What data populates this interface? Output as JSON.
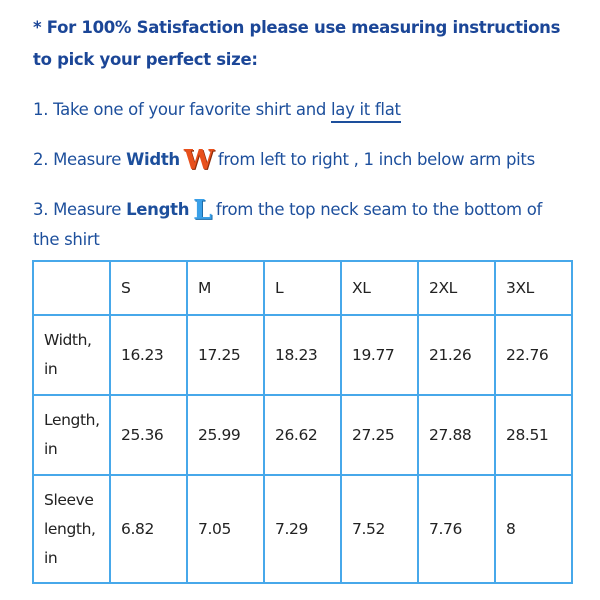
{
  "intro": {
    "line1": "* For 100% Satisfaction please use measuring instructions",
    "line2": "to pick your perfect size:"
  },
  "steps": [
    {
      "prefix": "1. Take one of your favorite shirt and ",
      "link": "lay it flat"
    },
    {
      "prefix": "2. Measure ",
      "bold": "Width",
      "icon": "W",
      "suffix": "from left to right , 1 inch below arm pits"
    },
    {
      "prefix": "3. Measure ",
      "bold": "Length",
      "icon": "L",
      "suffix": "from the top neck seam to the bottom of",
      "continuation": "the shirt"
    }
  ],
  "table": {
    "headers": [
      "",
      "S",
      "M",
      "L",
      "XL",
      "2XL",
      "3XL"
    ],
    "rows": [
      {
        "label_a": "Width,",
        "label_b": "in",
        "label_c": "",
        "values": [
          "16.23",
          "17.25",
          "18.23",
          "19.77",
          "21.26",
          "22.76"
        ]
      },
      {
        "label_a": "Length,",
        "label_b": "in",
        "label_c": "",
        "values": [
          "25.36",
          "25.99",
          "26.62",
          "27.25",
          "27.88",
          "28.51"
        ]
      },
      {
        "label_a": "Sleeve",
        "label_b": "length,",
        "label_c": "in",
        "values": [
          "6.82",
          "7.05",
          "7.29",
          "7.52",
          "7.76",
          "8"
        ]
      }
    ]
  },
  "colors": {
    "text": "#1d4f9c",
    "border": "#47a8ea",
    "width_icon": "#e8501c",
    "length_icon": "#3aa0e8"
  }
}
